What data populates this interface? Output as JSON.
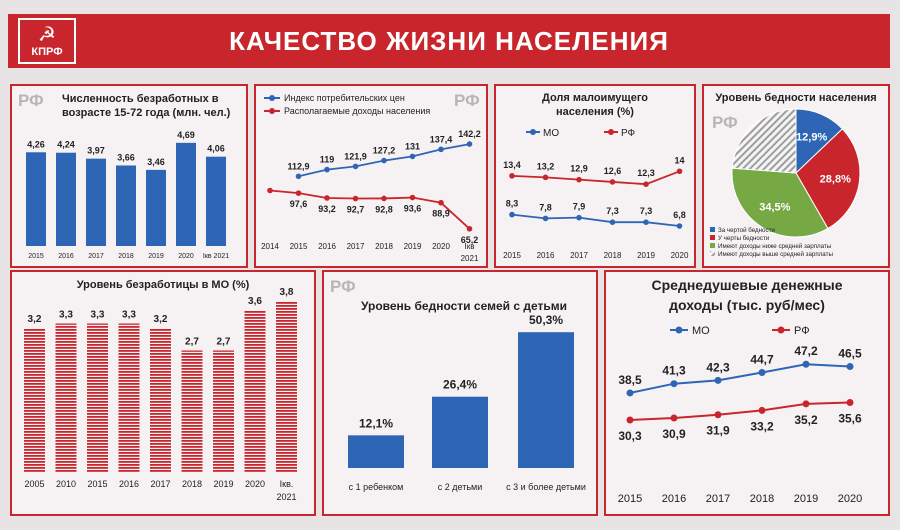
{
  "header": {
    "title": "КАЧЕСТВО ЖИЗНИ НАСЕЛЕНИЯ",
    "logo_text": "КПРФ",
    "logo_symbol": "☭"
  },
  "colors": {
    "red": "#c8262c",
    "blue": "#2e66b5",
    "green": "#76a843",
    "hatch": "#9e9e9e"
  },
  "chart_data": [
    {
      "type": "bar",
      "region": "РФ",
      "title_lines": [
        "Численность безработных в",
        "возрасте 15-72 года (млн. чел.)"
      ],
      "categories": [
        "2015",
        "2016",
        "2017",
        "2018",
        "2019",
        "2020",
        "Iкв 2021"
      ],
      "values": [
        4.26,
        4.24,
        3.97,
        3.66,
        3.46,
        4.69,
        4.06
      ],
      "labels": [
        "4,26",
        "4,24",
        "3,97",
        "3,66",
        "3,46",
        "4,69",
        "4,06"
      ]
    },
    {
      "type": "line",
      "region": "РФ",
      "categories": [
        "2014",
        "2015",
        "2016",
        "2017",
        "2018",
        "2019",
        "2020",
        "Iкв"
      ],
      "category_sublabel": "2021",
      "series": [
        {
          "name": "Индекс потребительских цен",
          "values": [
            null,
            112.9,
            119,
            121.9,
            127.2,
            131,
            137.4,
            142.2
          ],
          "labels": [
            "",
            "112,9",
            "119",
            "121,9",
            "127,2",
            "131",
            "137,4",
            "142,2"
          ]
        },
        {
          "name": "Располагаемые доходы населения",
          "values": [
            100,
            97.6,
            93.2,
            92.7,
            92.8,
            93.6,
            88.9,
            65.2
          ],
          "labels": [
            "",
            "97,6",
            "93,2",
            "92,7",
            "92,8",
            "93,6",
            "88,9",
            "65,2"
          ]
        }
      ]
    },
    {
      "type": "line",
      "title_lines": [
        "Доля малоимущего",
        "населения (%)"
      ],
      "categories": [
        "2015",
        "2016",
        "2017",
        "2018",
        "2019",
        "2020"
      ],
      "series": [
        {
          "name": "МО",
          "values": [
            8.3,
            7.8,
            7.9,
            7.3,
            7.3,
            6.8
          ],
          "labels": [
            "8,3",
            "7,8",
            "7,9",
            "7,3",
            "7,3",
            "6,8"
          ]
        },
        {
          "name": "РФ",
          "values": [
            13.4,
            13.2,
            12.9,
            12.6,
            12.3,
            14
          ],
          "labels": [
            "13,4",
            "13,2",
            "12,9",
            "12,6",
            "12,3",
            "14"
          ]
        }
      ]
    },
    {
      "type": "pie",
      "region": "РФ",
      "title": "Уровень бедности населения",
      "slices": [
        {
          "name": "За чертой бедности",
          "value": 12.9,
          "label": "12,9%"
        },
        {
          "name": "У черты бедности",
          "value": 28.8,
          "label": "28,8%"
        },
        {
          "name": "Имеют доходы ниже средней зарплаты",
          "value": 34.5,
          "label": "34,5%"
        },
        {
          "name": "Имеют доходы выше средней зарплаты",
          "value": 23.8,
          "label": ""
        }
      ]
    },
    {
      "type": "bar",
      "title": "Уровень безработицы в МО (%)",
      "categories": [
        "2005",
        "2010",
        "2015",
        "2016",
        "2017",
        "2018",
        "2019",
        "2020",
        "Iкв."
      ],
      "category_sublabel": "2021",
      "values": [
        3.2,
        3.3,
        3.3,
        3.3,
        3.2,
        2.7,
        2.7,
        3.6,
        3.8
      ],
      "labels": [
        "3,2",
        "3,3",
        "3,3",
        "3,3",
        "3,2",
        "2,7",
        "2,7",
        "3,6",
        "3,8"
      ]
    },
    {
      "type": "bar",
      "region": "РФ",
      "title": "Уровень бедности семей с детьми",
      "categories": [
        "с 1 ребенком",
        "с 2 детьми",
        "с 3 и более детьми"
      ],
      "values": [
        12.1,
        26.4,
        50.3
      ],
      "labels": [
        "12,1%",
        "26,4%",
        "50,3%"
      ]
    },
    {
      "type": "line",
      "title_lines": [
        "Среднедушевые денежные",
        "доходы (тыс. руб/мес)"
      ],
      "categories": [
        "2015",
        "2016",
        "2017",
        "2018",
        "2019",
        "2020"
      ],
      "series": [
        {
          "name": "МО",
          "values": [
            38.5,
            41.3,
            42.3,
            44.7,
            47.2,
            46.5
          ],
          "labels": [
            "38,5",
            "41,3",
            "42,3",
            "44,7",
            "47,2",
            "46,5"
          ]
        },
        {
          "name": "РФ",
          "values": [
            30.3,
            30.9,
            31.9,
            33.2,
            35.2,
            35.6
          ],
          "labels": [
            "30,3",
            "30,9",
            "31,9",
            "33,2",
            "35,2",
            "35,6"
          ]
        }
      ]
    }
  ]
}
